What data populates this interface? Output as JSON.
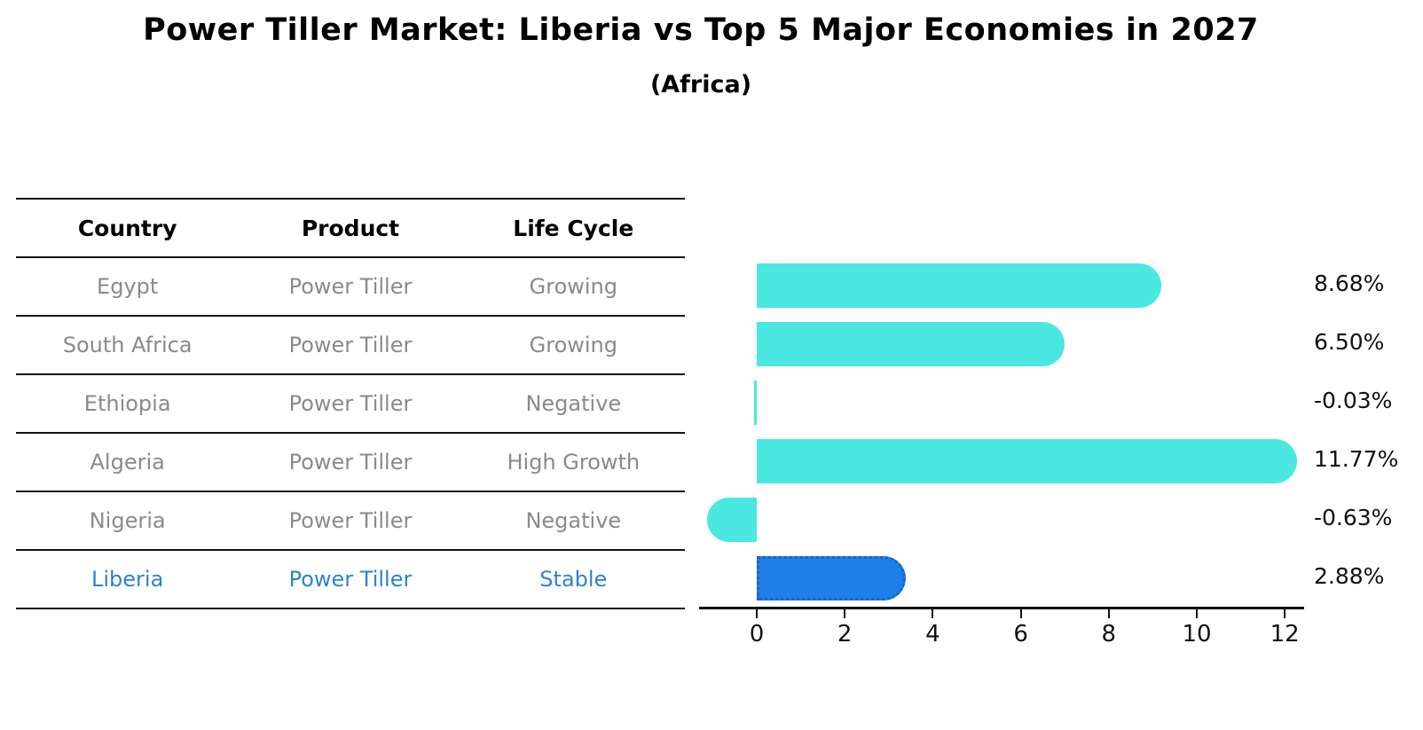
{
  "title": "Power Tiller Market: Liberia vs Top 5 Major Economies in 2027",
  "subtitle": "(Africa)",
  "table": {
    "headers": [
      "Country",
      "Product",
      "Life Cycle"
    ],
    "rows": [
      {
        "country": "Egypt",
        "product": "Power Tiller",
        "life_cycle": "Growing",
        "highlight": false
      },
      {
        "country": "South Africa",
        "product": "Power Tiller",
        "life_cycle": "Growing",
        "highlight": false
      },
      {
        "country": "Ethiopia",
        "product": "Power Tiller",
        "life_cycle": "Negative",
        "highlight": false
      },
      {
        "country": "Algeria",
        "product": "Power Tiller",
        "life_cycle": "High Growth",
        "highlight": false
      },
      {
        "country": "Nigeria",
        "product": "Power Tiller",
        "life_cycle": "Negative",
        "highlight": false
      },
      {
        "country": "Liberia",
        "product": "Power Tiller",
        "life_cycle": "Stable",
        "highlight": true
      }
    ]
  },
  "chart_data": {
    "type": "bar",
    "orientation": "horizontal",
    "categories": [
      "Egypt",
      "South Africa",
      "Ethiopia",
      "Algeria",
      "Nigeria",
      "Liberia"
    ],
    "values": [
      8.68,
      6.5,
      -0.03,
      11.77,
      -0.63,
      2.88
    ],
    "value_labels": [
      "8.68%",
      "6.50%",
      "-0.03%",
      "11.77%",
      "-0.63%",
      "2.88%"
    ],
    "x_ticks": [
      0,
      2,
      4,
      6,
      8,
      10,
      12
    ],
    "xlim": [
      -1.5,
      12.5
    ],
    "xlabel": "",
    "ylabel": "",
    "grid": false,
    "legend": "none",
    "bar_color": "#4ae8e0",
    "highlight_color": "#1e7fe8",
    "highlight_index": 5
  },
  "colors": {
    "background": "#ffffff",
    "title_text": "#000000",
    "muted_text": "#8a8a8a",
    "highlight_text": "#2e82d2",
    "axis": "#111111",
    "table_line": "#141414"
  }
}
